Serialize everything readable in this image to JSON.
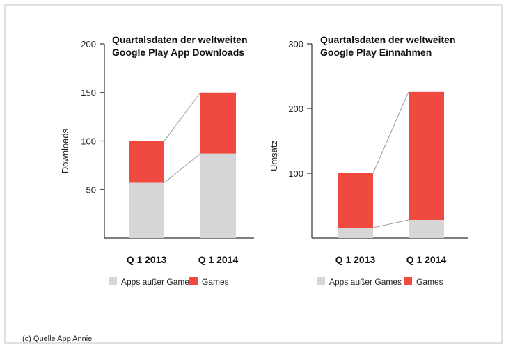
{
  "colors": {
    "non_games": "#d6d6d6",
    "games": "#f04a40",
    "axis": "#333333",
    "connector": "#9a9a9a"
  },
  "chart_data": [
    {
      "type": "bar",
      "stacked": true,
      "title": "Quartalsdaten der weltweiten Google Play App Downloads",
      "title_lines": [
        "Quartalsdaten der weltweiten",
        "Google Play App Downloads"
      ],
      "ylabel": "Downloads",
      "xlabel": "",
      "ylim": [
        0,
        200
      ],
      "yticks": [
        50,
        100,
        150,
        200
      ],
      "categories": [
        "Q 1 2013",
        "Q 1 2014"
      ],
      "series": [
        {
          "name": "Apps außer Games",
          "values": [
            57,
            87
          ]
        },
        {
          "name": "Games",
          "values": [
            43,
            63
          ]
        }
      ],
      "legend": "bottom"
    },
    {
      "type": "bar",
      "stacked": true,
      "title": "Quartalsdaten der weltweiten Google Play Einnahmen",
      "title_lines": [
        "Quartalsdaten der weltweiten",
        "Google Play Einnahmen"
      ],
      "ylabel": "Umsatz",
      "xlabel": "",
      "ylim": [
        0,
        300
      ],
      "yticks": [
        100,
        200,
        300
      ],
      "categories": [
        "Q 1 2013",
        "Q 1 2014"
      ],
      "series": [
        {
          "name": "Apps außer Games",
          "values": [
            16,
            28
          ]
        },
        {
          "name": "Games",
          "values": [
            84,
            198
          ]
        }
      ],
      "legend": "bottom"
    }
  ],
  "source": "(c) Quelle App Annie"
}
